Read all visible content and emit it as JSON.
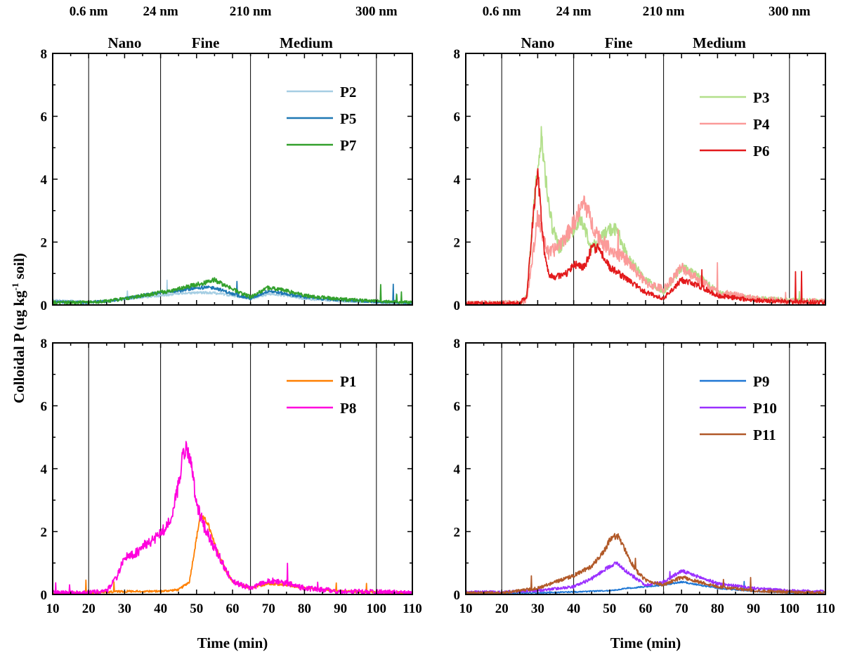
{
  "figure": {
    "ylabel_main": "Colloidal P (ug kg",
    "ylabel_sup": "-1",
    "ylabel_tail": " soil)",
    "xlabel": "Time (min)"
  },
  "chart_data": [
    {
      "type": "line",
      "panel": "top-left",
      "xlim": [
        10,
        110
      ],
      "ylim": [
        0,
        8
      ],
      "x_ticks": [
        10,
        20,
        30,
        40,
        50,
        60,
        70,
        80,
        90,
        100,
        110
      ],
      "y_ticks": [
        0,
        2,
        4,
        6,
        8
      ],
      "xlabel": "",
      "ylabel": "",
      "grid": false,
      "legend_position": "top-right",
      "boundaries": [
        20,
        40,
        65,
        100
      ],
      "size_labels": [
        {
          "x": 20,
          "text": "0.6 nm"
        },
        {
          "x": 40,
          "text": "24 nm"
        },
        {
          "x": 65,
          "text": "210 nm"
        },
        {
          "x": 100,
          "text": "300 nm"
        }
      ],
      "regions": [
        {
          "x": 30,
          "text": "Nano"
        },
        {
          "x": 52.5,
          "text": "Fine"
        },
        {
          "x": 80.5,
          "text": "Medium"
        }
      ],
      "series": [
        {
          "name": "P2",
          "color": "#a6cee3",
          "noise": 0.05,
          "x": [
            10,
            20,
            25,
            30,
            35,
            40,
            45,
            50,
            55,
            60,
            65,
            70,
            75,
            80,
            90,
            100,
            110
          ],
          "values": [
            0.15,
            0.1,
            0.12,
            0.18,
            0.25,
            0.3,
            0.35,
            0.4,
            0.38,
            0.3,
            0.2,
            0.35,
            0.3,
            0.2,
            0.12,
            0.08,
            0.05
          ]
        },
        {
          "name": "P5",
          "color": "#1f78b4",
          "noise": 0.06,
          "x": [
            10,
            20,
            25,
            30,
            35,
            40,
            45,
            50,
            55,
            60,
            65,
            70,
            75,
            80,
            90,
            100,
            110
          ],
          "values": [
            0.1,
            0.08,
            0.12,
            0.2,
            0.3,
            0.4,
            0.45,
            0.55,
            0.55,
            0.35,
            0.2,
            0.45,
            0.35,
            0.25,
            0.15,
            0.1,
            0.06
          ]
        },
        {
          "name": "P7",
          "color": "#33a02c",
          "noise": 0.08,
          "x": [
            10,
            20,
            25,
            30,
            35,
            40,
            45,
            50,
            55,
            60,
            65,
            70,
            75,
            80,
            90,
            100,
            110
          ],
          "values": [
            0.08,
            0.08,
            0.12,
            0.2,
            0.3,
            0.4,
            0.5,
            0.65,
            0.8,
            0.5,
            0.25,
            0.55,
            0.45,
            0.3,
            0.18,
            0.12,
            0.08
          ]
        }
      ]
    },
    {
      "type": "line",
      "panel": "top-right",
      "xlim": [
        10,
        110
      ],
      "ylim": [
        0,
        8
      ],
      "x_ticks": [
        10,
        20,
        30,
        40,
        50,
        60,
        70,
        80,
        90,
        100,
        110
      ],
      "y_ticks": [
        0,
        2,
        4,
        6,
        8
      ],
      "xlabel": "",
      "ylabel": "",
      "grid": false,
      "legend_position": "top-right",
      "boundaries": [
        20,
        40,
        65,
        100
      ],
      "size_labels": [
        {
          "x": 20,
          "text": "0.6 nm"
        },
        {
          "x": 40,
          "text": "24 nm"
        },
        {
          "x": 65,
          "text": "210 nm"
        },
        {
          "x": 100,
          "text": "300 nm"
        }
      ],
      "regions": [
        {
          "x": 30,
          "text": "Nano"
        },
        {
          "x": 52.5,
          "text": "Fine"
        },
        {
          "x": 80.5,
          "text": "Medium"
        }
      ],
      "series": [
        {
          "name": "P3",
          "color": "#b2df8a",
          "noise": 0.12,
          "x": [
            10,
            20,
            25,
            27,
            28.5,
            30,
            31,
            32,
            34,
            36,
            40,
            42,
            45,
            50,
            52,
            55,
            60,
            65,
            70,
            75,
            80,
            90,
            100,
            110
          ],
          "values": [
            0.05,
            0.05,
            0.05,
            0.3,
            2.5,
            4.5,
            5.3,
            4.2,
            2.5,
            1.8,
            2.4,
            2.8,
            1.8,
            2.4,
            2.4,
            1.5,
            0.8,
            0.4,
            1.2,
            0.9,
            0.4,
            0.2,
            0.15,
            0.1
          ]
        },
        {
          "name": "P4",
          "color": "#fb9a99",
          "noise": 0.15,
          "x": [
            10,
            20,
            25,
            27,
            28.5,
            30,
            31,
            33,
            35,
            38,
            40,
            43,
            45,
            48,
            50,
            55,
            60,
            65,
            70,
            75,
            80,
            90,
            100,
            110
          ],
          "values": [
            0.05,
            0.05,
            0.05,
            0.2,
            1.5,
            2.8,
            2.4,
            1.6,
            1.8,
            2.2,
            2.6,
            3.3,
            2.6,
            2.0,
            1.8,
            1.4,
            0.7,
            0.5,
            1.2,
            0.8,
            0.4,
            0.2,
            0.12,
            0.1
          ]
        },
        {
          "name": "P6",
          "color": "#e31a1c",
          "noise": 0.1,
          "x": [
            10,
            20,
            25,
            27,
            28.5,
            30,
            31,
            32,
            33,
            35,
            38,
            40,
            43,
            45,
            47,
            50,
            55,
            60,
            65,
            70,
            75,
            80,
            90,
            100,
            110
          ],
          "values": [
            0.05,
            0.05,
            0.05,
            0.3,
            2.5,
            4.3,
            2.8,
            1.5,
            1.0,
            0.9,
            1.0,
            1.3,
            1.2,
            1.8,
            1.8,
            1.2,
            0.8,
            0.4,
            0.2,
            0.8,
            0.6,
            0.3,
            0.15,
            0.1,
            0.08
          ]
        }
      ]
    },
    {
      "type": "line",
      "panel": "bottom-left",
      "xlim": [
        10,
        110
      ],
      "ylim": [
        0,
        8
      ],
      "x_ticks": [
        10,
        20,
        30,
        40,
        50,
        60,
        70,
        80,
        90,
        100,
        110
      ],
      "y_ticks": [
        0,
        2,
        4,
        6,
        8
      ],
      "xlabel": "Time (min)",
      "ylabel": "",
      "grid": false,
      "legend_position": "top-right",
      "boundaries": [
        20,
        40,
        65,
        100
      ],
      "series": [
        {
          "name": "P1",
          "color": "#ff7f00",
          "noise": 0.05,
          "x": [
            10,
            20,
            30,
            40,
            45,
            48,
            50,
            51,
            53,
            55,
            58,
            60,
            65,
            70,
            75,
            80,
            90,
            100,
            110
          ],
          "values": [
            0.05,
            0.05,
            0.1,
            0.1,
            0.15,
            0.4,
            1.8,
            2.5,
            2.3,
            1.6,
            0.8,
            0.4,
            0.2,
            0.35,
            0.3,
            0.2,
            0.1,
            0.08,
            0.05
          ]
        },
        {
          "name": "P8",
          "color": "#ff00dd",
          "noise": 0.12,
          "x": [
            10,
            20,
            25,
            28,
            30,
            33,
            36,
            40,
            43,
            45,
            46.5,
            47.5,
            48.5,
            50,
            52,
            55,
            58,
            60,
            65,
            70,
            75,
            80,
            90,
            100,
            110
          ],
          "values": [
            0.05,
            0.05,
            0.1,
            0.6,
            1.2,
            1.3,
            1.6,
            1.9,
            2.4,
            3.5,
            4.6,
            4.7,
            4.2,
            2.8,
            2.2,
            1.5,
            0.8,
            0.4,
            0.2,
            0.45,
            0.35,
            0.2,
            0.1,
            0.08,
            0.05
          ]
        }
      ]
    },
    {
      "type": "line",
      "panel": "bottom-right",
      "xlim": [
        10,
        110
      ],
      "ylim": [
        0,
        8
      ],
      "x_ticks": [
        10,
        20,
        30,
        40,
        50,
        60,
        70,
        80,
        90,
        100,
        110
      ],
      "y_ticks": [
        0,
        2,
        4,
        6,
        8
      ],
      "xlabel": "Time (min)",
      "ylabel": "",
      "grid": false,
      "legend_position": "top-right",
      "boundaries": [
        20,
        40,
        65,
        100
      ],
      "series": [
        {
          "name": "P9",
          "color": "#1f77d4",
          "noise": 0.03,
          "x": [
            10,
            20,
            30,
            40,
            50,
            55,
            60,
            65,
            70,
            75,
            80,
            90,
            100,
            110
          ],
          "values": [
            0.05,
            0.05,
            0.05,
            0.08,
            0.12,
            0.2,
            0.25,
            0.3,
            0.4,
            0.3,
            0.2,
            0.1,
            0.06,
            0.05
          ]
        },
        {
          "name": "P10",
          "color": "#9b30ff",
          "noise": 0.06,
          "x": [
            10,
            20,
            30,
            40,
            45,
            50,
            52,
            55,
            60,
            65,
            70,
            75,
            80,
            90,
            100,
            110
          ],
          "values": [
            0.08,
            0.08,
            0.12,
            0.25,
            0.5,
            0.9,
            1.0,
            0.7,
            0.3,
            0.4,
            0.75,
            0.55,
            0.35,
            0.2,
            0.12,
            0.1
          ]
        },
        {
          "name": "P11",
          "color": "#b15928",
          "noise": 0.07,
          "x": [
            10,
            20,
            30,
            35,
            40,
            45,
            48,
            50,
            52,
            54,
            57,
            60,
            65,
            70,
            75,
            80,
            90,
            100,
            110
          ],
          "values": [
            0.05,
            0.05,
            0.2,
            0.4,
            0.6,
            0.9,
            1.3,
            1.7,
            1.9,
            1.5,
            0.8,
            0.45,
            0.3,
            0.55,
            0.4,
            0.25,
            0.12,
            0.08,
            0.05
          ]
        }
      ]
    }
  ]
}
